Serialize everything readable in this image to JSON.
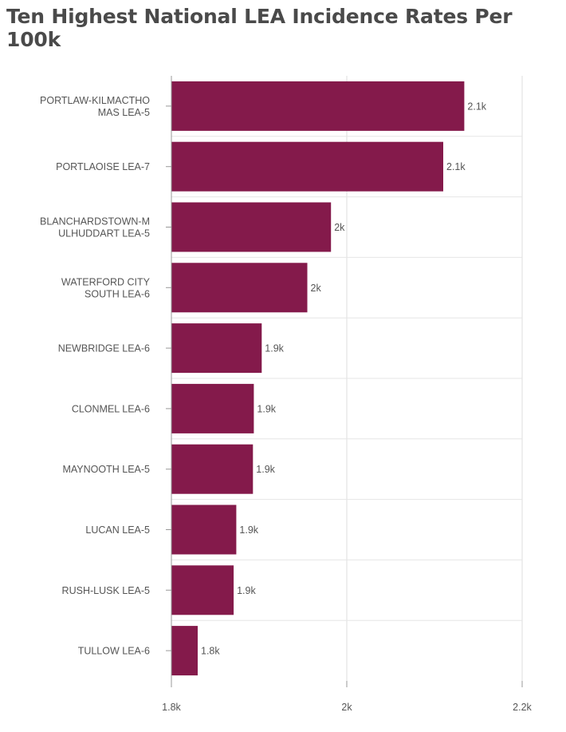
{
  "chart_data": {
    "type": "bar",
    "orientation": "horizontal",
    "title": "Ten Highest National LEA Incidence Rates Per 100k",
    "categories": [
      [
        "PORTLAW-KILMACTHO",
        "MAS LEA-5"
      ],
      [
        "PORTLAOISE LEA-7"
      ],
      [
        "BLANCHARDSTOWN-M",
        "ULHUDDART LEA-5"
      ],
      [
        "WATERFORD CITY",
        "SOUTH LEA-6"
      ],
      [
        "NEWBRIDGE LEA-6"
      ],
      [
        "CLONMEL LEA-6"
      ],
      [
        "MAYNOOTH LEA-5"
      ],
      [
        "LUCAN LEA-5"
      ],
      [
        "RUSH-LUSK LEA-5"
      ],
      [
        "TULLOW LEA-6"
      ]
    ],
    "values": [
      2134,
      2110,
      1982,
      1955,
      1903,
      1894,
      1893,
      1874,
      1871,
      1830
    ],
    "value_labels": [
      "2.1k",
      "2.1k",
      "2k",
      "2k",
      "1.9k",
      "1.9k",
      "1.9k",
      "1.9k",
      "1.9k",
      "1.8k"
    ],
    "xlim": [
      1800,
      2200
    ],
    "x_ticks": [
      1800,
      2000,
      2200
    ],
    "x_tick_labels": [
      "1.8k",
      "2k",
      "2.2k"
    ],
    "bar_color": "#841a4b",
    "grid": true,
    "legend": "none"
  }
}
